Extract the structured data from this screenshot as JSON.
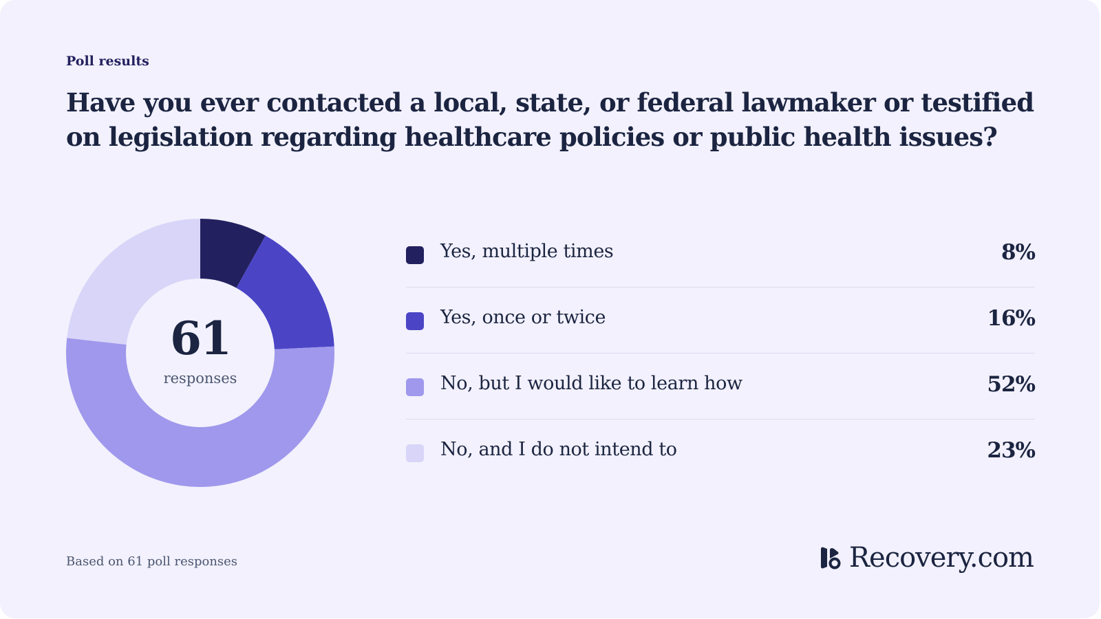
{
  "kicker": "Poll results",
  "title": "Have you ever contacted a local, state, or federal lawmaker or testified on legislation regarding healthcare policies or public health issues?",
  "total": {
    "value": "61",
    "label": "responses"
  },
  "footnote": "Based on 61 poll responses",
  "brand": {
    "name": "Recovery",
    "suffix": ".com",
    "logo_icon": "recovery-logo-icon"
  },
  "chart_data": {
    "type": "pie",
    "donut": true,
    "categories": [
      "Yes, multiple times",
      "Yes, once or twice",
      "No, but I would like to learn how",
      "No, and I do not intend to"
    ],
    "values": [
      8,
      16,
      52,
      23
    ],
    "value_labels": [
      "8%",
      "16%",
      "52%",
      "23%"
    ],
    "colors": [
      "#23205f",
      "#4b45c6",
      "#9f98ec",
      "#d8d5f8"
    ],
    "legend": "right"
  }
}
